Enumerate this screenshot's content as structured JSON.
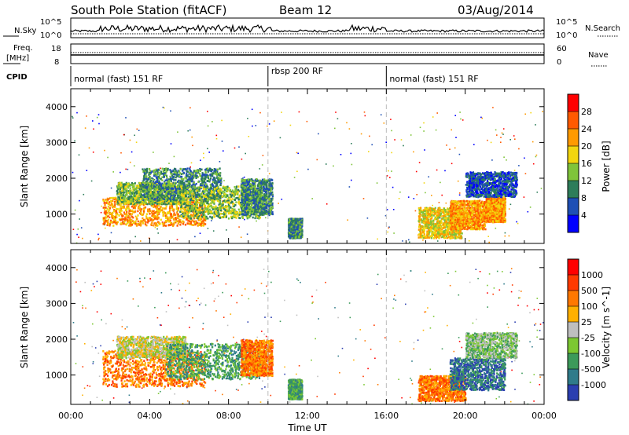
{
  "header": {
    "station": "South Pole Station (fitACF)",
    "beam": "Beam 12",
    "date": "03/Aug/2014"
  },
  "status_panels": {
    "nsky_label": "N.Sky",
    "nsearch_label": "N.Search",
    "freq_label_1": "Freq.",
    "freq_label_2": "[MHz]",
    "nave_label": "Nave",
    "cpid_label": "CPID",
    "nsky_left_ticks": [
      "10^5",
      "10^0"
    ],
    "nsky_right_ticks": [
      "10^5",
      "10^0"
    ],
    "freq_left_ticks": [
      "18",
      "8"
    ],
    "nave_right_ticks": [
      "60",
      "0"
    ]
  },
  "cpid": {
    "segments": [
      {
        "label": "normal (fast) 151 RF",
        "start_hour": 0,
        "end_hour": 10
      },
      {
        "label": "rbsp 200 RF",
        "start_hour": 10,
        "end_hour": 16
      },
      {
        "label": "normal (fast) 151 RF",
        "start_hour": 16,
        "end_hour": 24
      }
    ]
  },
  "chart_data": [
    {
      "type": "heatmap",
      "name": "power-panel",
      "ylabel": "Slant Range [km]",
      "xlim": [
        0,
        24
      ],
      "ylim": [
        180,
        4500
      ],
      "yticks": [
        1000,
        2000,
        3000,
        4000
      ],
      "colorbar": {
        "label": "Power [dB]",
        "ticks": [
          "28",
          "24",
          "20",
          "16",
          "12",
          "8",
          "4"
        ],
        "colors": [
          "#0000ff",
          "#1e4fb5",
          "#2e7d5a",
          "#7fc43a",
          "#f2d60f",
          "#ff9a00",
          "#ff5a00",
          "#ff0000"
        ]
      },
      "echo_regions": [
        {
          "t0": 1.6,
          "t1": 6.8,
          "r0": 700,
          "r1": 1500,
          "level": 5
        },
        {
          "t0": 2.3,
          "t1": 5.8,
          "r0": 1300,
          "r1": 1900,
          "level": 3
        },
        {
          "t0": 3.6,
          "t1": 7.6,
          "r0": 1400,
          "r1": 2300,
          "level": 2
        },
        {
          "t0": 5.5,
          "t1": 9.6,
          "r0": 900,
          "r1": 1800,
          "level": 3
        },
        {
          "t0": 8.6,
          "t1": 10.2,
          "r0": 1000,
          "r1": 2000,
          "level": 2
        },
        {
          "t0": 11.0,
          "t1": 11.7,
          "r0": 350,
          "r1": 900,
          "level": 2
        },
        {
          "t0": 17.6,
          "t1": 19.8,
          "r0": 350,
          "r1": 1200,
          "level": 4
        },
        {
          "t0": 19.2,
          "t1": 21.0,
          "r0": 600,
          "r1": 1400,
          "level": 5
        },
        {
          "t0": 21.0,
          "t1": 22.0,
          "r0": 800,
          "r1": 1500,
          "level": 5
        },
        {
          "t0": 20.0,
          "t1": 22.6,
          "r0": 1500,
          "r1": 2200,
          "level": 1
        }
      ]
    },
    {
      "type": "heatmap",
      "name": "velocity-panel",
      "ylabel": "Slant Range [km]",
      "xlabel": "Time UT",
      "xlim": [
        0,
        24
      ],
      "ylim": [
        180,
        4500
      ],
      "xticks": [
        "00:00",
        "04:00",
        "08:00",
        "12:00",
        "16:00",
        "20:00",
        "00:00"
      ],
      "yticks": [
        1000,
        2000,
        3000,
        4000
      ],
      "colorbar": {
        "label": "Velocity [m s^-1]",
        "ticks": [
          "1000",
          "500",
          "100",
          "25",
          "-25",
          "-100",
          "-500",
          "-1000"
        ],
        "colors": [
          "#2b3fb0",
          "#2f7b8a",
          "#3c9a5a",
          "#7cc832",
          "#bfbfbf",
          "#ffb000",
          "#ff7800",
          "#ff3a00",
          "#ff0000"
        ]
      },
      "echo_regions": [
        {
          "t0": 1.6,
          "t1": 6.8,
          "r0": 700,
          "r1": 1700,
          "level": 6
        },
        {
          "t0": 2.3,
          "t1": 5.8,
          "r0": 1500,
          "r1": 2100,
          "level": 4
        },
        {
          "t0": 4.8,
          "t1": 9.6,
          "r0": 900,
          "r1": 1900,
          "level": 2
        },
        {
          "t0": 8.6,
          "t1": 10.2,
          "r0": 1000,
          "r1": 2000,
          "level": 6
        },
        {
          "t0": 11.0,
          "t1": 11.7,
          "r0": 350,
          "r1": 900,
          "level": 2
        },
        {
          "t0": 17.6,
          "t1": 20.0,
          "r0": 300,
          "r1": 1000,
          "level": 6
        },
        {
          "t0": 19.2,
          "t1": 22.0,
          "r0": 600,
          "r1": 1500,
          "level": 1
        },
        {
          "t0": 20.0,
          "t1": 22.6,
          "r0": 1500,
          "r1": 2200,
          "level": 3
        }
      ]
    }
  ]
}
